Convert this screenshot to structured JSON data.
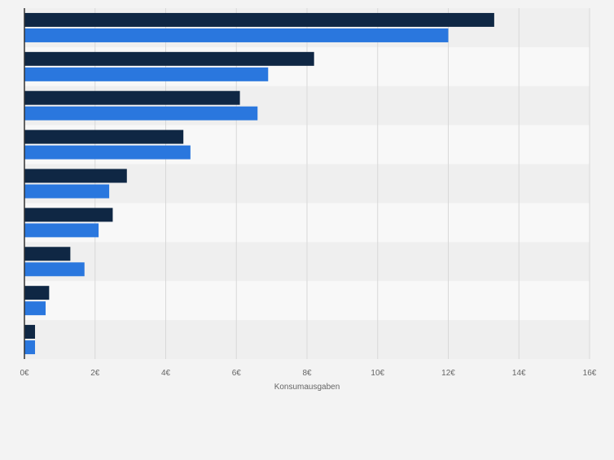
{
  "chart_data": {
    "type": "bar",
    "orientation": "horizontal",
    "categories": [
      "",
      "",
      "",
      "",
      "",
      "",
      "",
      "",
      ""
    ],
    "series": [
      {
        "values": [
          13.3,
          8.2,
          6.1,
          4.5,
          2.9,
          2.5,
          1.3,
          0.7,
          0.3
        ]
      },
      {
        "values": [
          12.0,
          6.9,
          6.6,
          4.7,
          2.4,
          2.1,
          1.7,
          0.6,
          0.3
        ]
      }
    ],
    "xlim": [
      0,
      16
    ],
    "xticks": [
      0,
      2,
      4,
      6,
      8,
      10,
      12,
      14,
      16
    ],
    "xtick_labels": [
      "0€",
      "2€",
      "4€",
      "6€",
      "8€",
      "10€",
      "12€",
      "14€",
      "16€"
    ],
    "xlabel": "Konsumausgaben",
    "grid": true,
    "legend": "none",
    "colors": {
      "series_1": "#0f2744",
      "series_2": "#2a77de",
      "band_dark": "#efefef",
      "band_light": "#f8f8f8",
      "grid": "#d8d8d8",
      "axis": "#333333",
      "text": "#666666"
    }
  }
}
